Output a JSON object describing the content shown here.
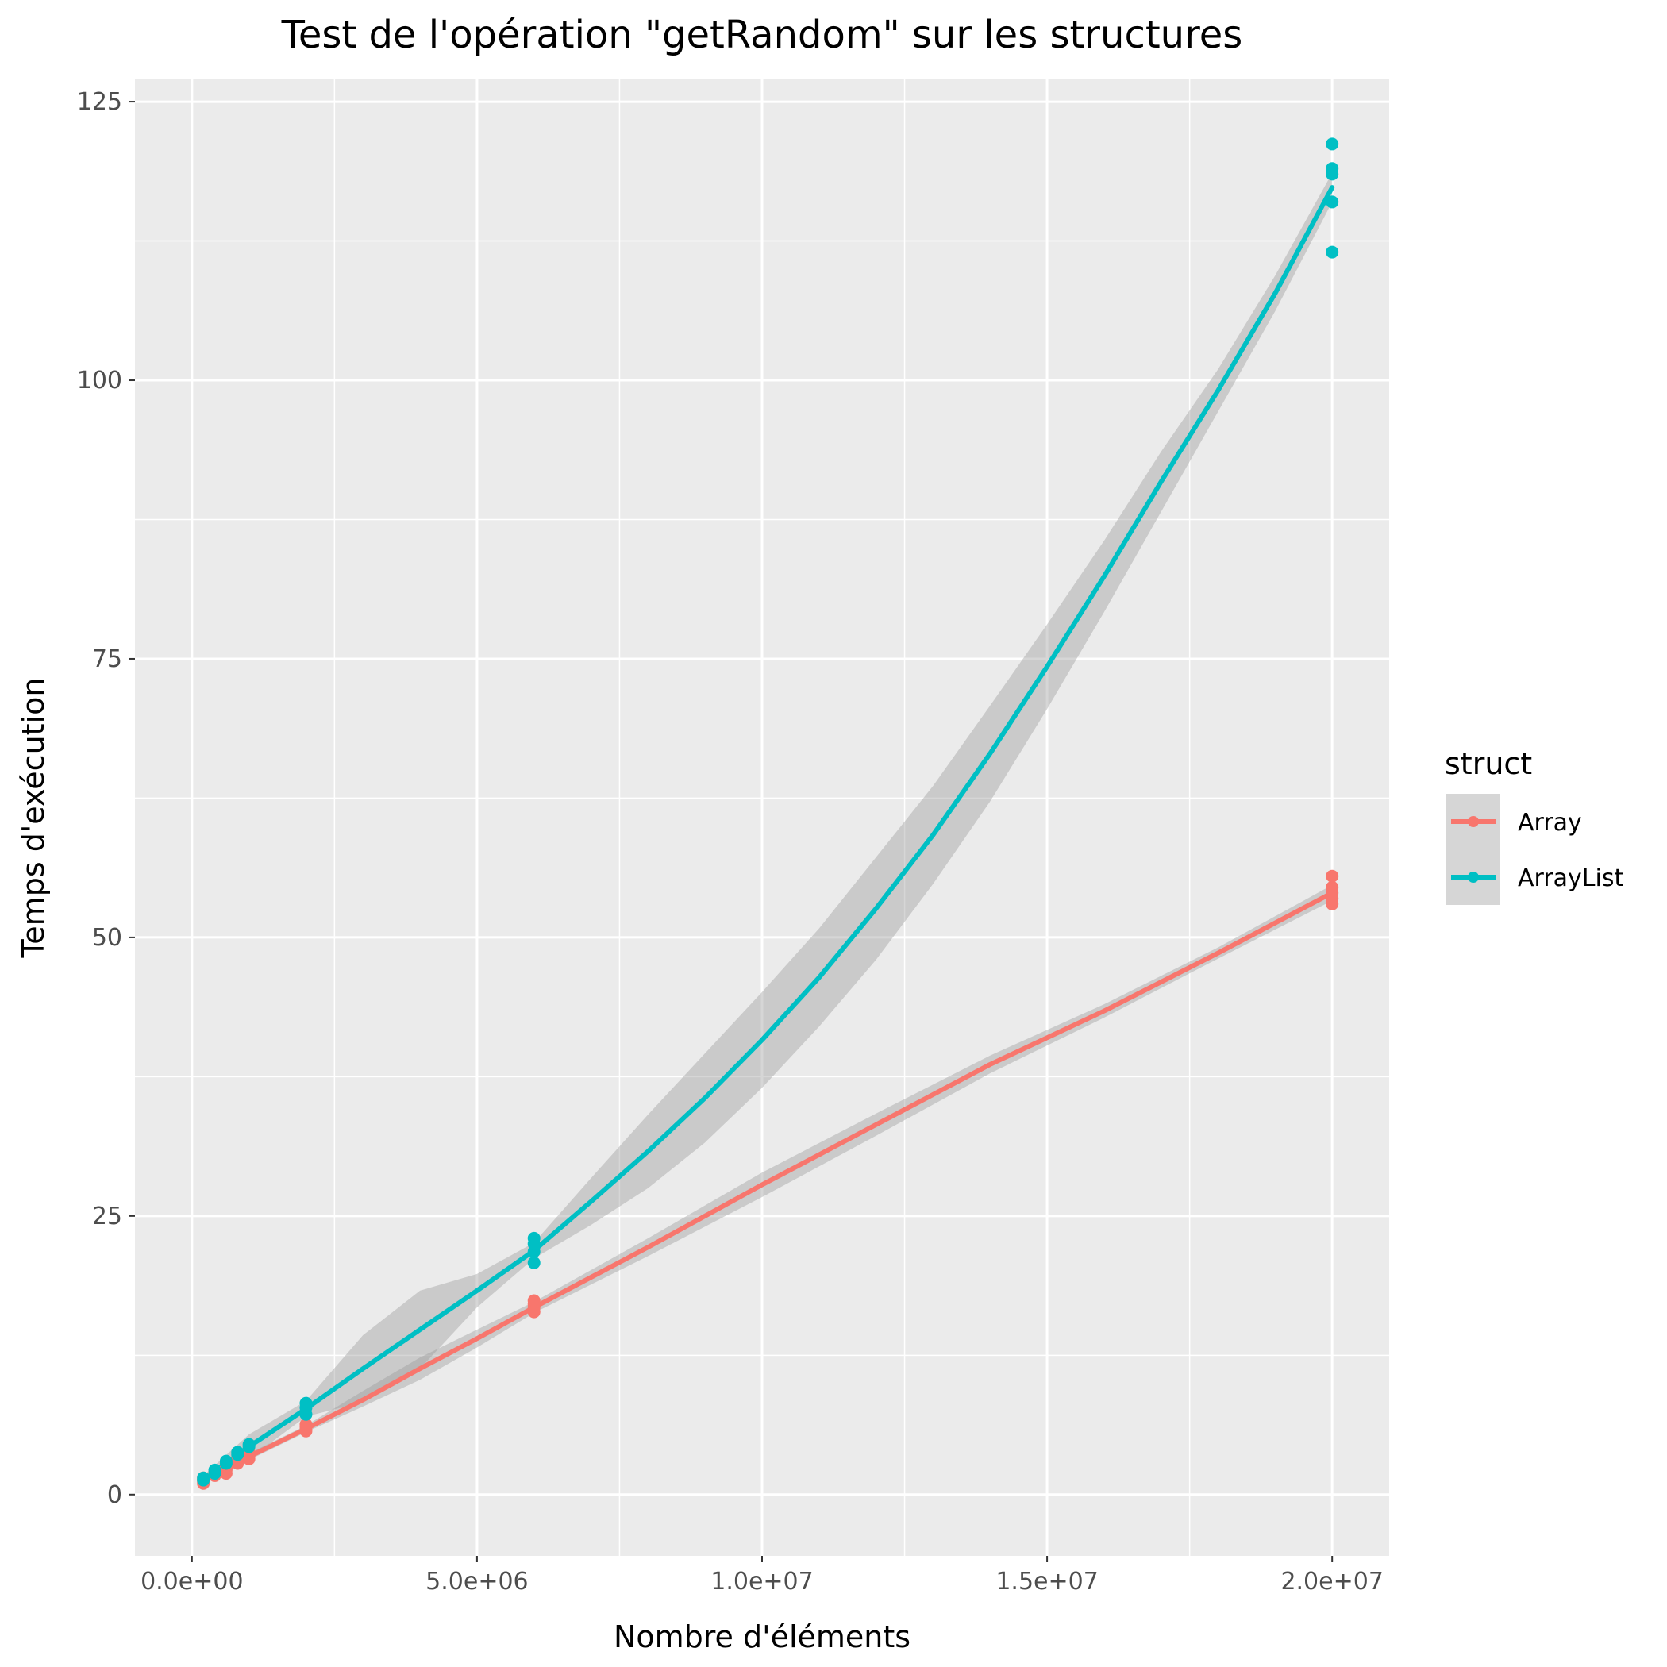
{
  "chart_data": {
    "type": "line",
    "title": "Test de l'opération \"getRandom\" sur les structures",
    "xlabel": "Nombre d'éléments",
    "ylabel": "Temps d'exécution",
    "xlim": [
      -1000000,
      21000000
    ],
    "ylim": [
      -5.5,
      127
    ],
    "x_ticks": [
      0,
      5000000,
      10000000,
      15000000,
      20000000
    ],
    "x_tick_labels": [
      "0.0e+00",
      "5.0e+06",
      "1.0e+07",
      "1.5e+07",
      "2.0e+07"
    ],
    "y_ticks": [
      0,
      25,
      50,
      75,
      100,
      125
    ],
    "y_tick_labels": [
      "0",
      "25",
      "50",
      "75",
      "100",
      "125"
    ],
    "grid": true,
    "legend": {
      "title": "struct",
      "position": "right"
    },
    "series": [
      {
        "name": "Array",
        "color": "#F8766D",
        "points": [
          [
            200000,
            1.0
          ],
          [
            200000,
            1.2
          ],
          [
            200000,
            1.3
          ],
          [
            200000,
            1.5
          ],
          [
            400000,
            1.7
          ],
          [
            400000,
            1.8
          ],
          [
            400000,
            2.0
          ],
          [
            600000,
            1.9
          ],
          [
            600000,
            2.2
          ],
          [
            600000,
            2.4
          ],
          [
            800000,
            2.8
          ],
          [
            800000,
            3.0
          ],
          [
            800000,
            3.2
          ],
          [
            1000000,
            3.2
          ],
          [
            1000000,
            3.5
          ],
          [
            1000000,
            3.8
          ],
          [
            2000000,
            5.7
          ],
          [
            2000000,
            5.9
          ],
          [
            2000000,
            6.1
          ],
          [
            2000000,
            6.3
          ],
          [
            6000000,
            16.4
          ],
          [
            6000000,
            16.8
          ],
          [
            6000000,
            17.1
          ],
          [
            6000000,
            17.4
          ],
          [
            20000000,
            53.0
          ],
          [
            20000000,
            53.5
          ],
          [
            20000000,
            54.0
          ],
          [
            20000000,
            54.5
          ],
          [
            20000000,
            55.5
          ]
        ],
        "smooth": {
          "x": [
            200000,
            1000000,
            2000000,
            3000000,
            4000000,
            5000000,
            6000000,
            8000000,
            10000000,
            12000000,
            14000000,
            16000000,
            18000000,
            20000000
          ],
          "y": [
            1.2,
            3.4,
            5.9,
            8.5,
            11.3,
            14.0,
            16.8,
            22.2,
            27.8,
            33.2,
            38.6,
            43.4,
            48.6,
            54.0
          ],
          "lower": [
            1.0,
            3.1,
            5.6,
            7.9,
            10.3,
            13.2,
            16.3,
            21.4,
            26.7,
            32.2,
            37.8,
            42.8,
            48.1,
            53.3
          ],
          "upper": [
            1.4,
            3.7,
            6.2,
            9.3,
            12.3,
            14.8,
            17.3,
            23.0,
            28.9,
            34.2,
            39.4,
            44.0,
            49.1,
            54.7
          ]
        }
      },
      {
        "name": "ArrayList",
        "color": "#00BFC4",
        "points": [
          [
            200000,
            1.3
          ],
          [
            200000,
            1.5
          ],
          [
            400000,
            1.9
          ],
          [
            400000,
            2.2
          ],
          [
            600000,
            2.8
          ],
          [
            600000,
            3.0
          ],
          [
            800000,
            3.6
          ],
          [
            800000,
            3.8
          ],
          [
            1000000,
            4.3
          ],
          [
            1000000,
            4.5
          ],
          [
            2000000,
            7.2
          ],
          [
            2000000,
            7.8
          ],
          [
            2000000,
            8.2
          ],
          [
            6000000,
            20.8
          ],
          [
            6000000,
            21.8
          ],
          [
            6000000,
            22.5
          ],
          [
            6000000,
            23.0
          ],
          [
            20000000,
            111.5
          ],
          [
            20000000,
            116.0
          ],
          [
            20000000,
            118.5
          ],
          [
            20000000,
            119.0
          ],
          [
            20000000,
            121.2
          ]
        ],
        "smooth": {
          "x": [
            200000,
            1000000,
            2000000,
            3000000,
            4000000,
            5000000,
            6000000,
            7000000,
            8000000,
            9000000,
            10000000,
            11000000,
            12000000,
            13000000,
            14000000,
            15000000,
            16000000,
            17000000,
            18000000,
            19000000,
            20000000
          ],
          "y": [
            1.3,
            4.3,
            7.7,
            11.3,
            14.8,
            18.3,
            21.9,
            26.3,
            30.8,
            35.6,
            40.8,
            46.4,
            52.6,
            59.2,
            66.5,
            74.3,
            82.4,
            90.9,
            99.1,
            107.8,
            117.3
          ],
          "lower": [
            0.9,
            3.2,
            7.0,
            8.3,
            11.3,
            16.8,
            21.2,
            24.2,
            27.5,
            31.6,
            36.5,
            42.0,
            48.0,
            54.8,
            62.2,
            70.5,
            79.2,
            88.2,
            97.2,
            106.2,
            116.0
          ],
          "upper": [
            1.7,
            5.4,
            8.4,
            14.3,
            18.3,
            19.8,
            22.6,
            28.4,
            34.1,
            39.6,
            45.1,
            50.8,
            57.2,
            63.6,
            70.8,
            78.1,
            85.6,
            93.6,
            101.0,
            109.4,
            118.6
          ]
        }
      }
    ]
  }
}
